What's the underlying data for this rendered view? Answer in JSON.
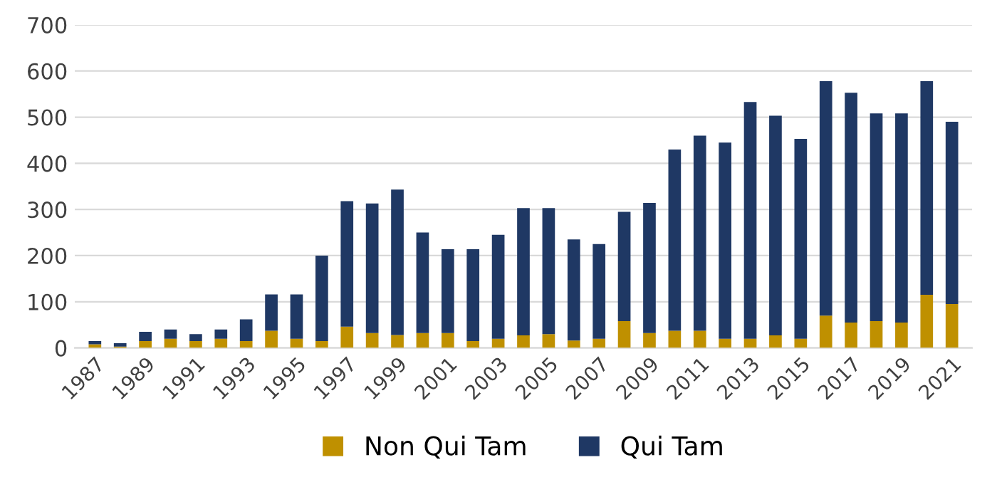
{
  "chart_data": {
    "type": "bar",
    "stacked": true,
    "categories": [
      "1987",
      null,
      "1989",
      null,
      "1991",
      null,
      "1993",
      null,
      "1995",
      null,
      "1997",
      null,
      "1999",
      null,
      "2001",
      null,
      "2003",
      null,
      "2005",
      null,
      "2007",
      null,
      "2009",
      null,
      "2011",
      null,
      "2013",
      null,
      "2015",
      null,
      "2017",
      null,
      "2019",
      null,
      "2021"
    ],
    "series": [
      {
        "name": "Non Qui Tam",
        "color": "#bf9000",
        "values": [
          8,
          3,
          15,
          20,
          15,
          20,
          15,
          37,
          20,
          15,
          46,
          32,
          28,
          32,
          32,
          15,
          20,
          27,
          30,
          16,
          20,
          58,
          32,
          37,
          37,
          20,
          20,
          27,
          20,
          70,
          55,
          58,
          55,
          115,
          95
        ]
      },
      {
        "name": "Qui Tam",
        "color": "#1f3864",
        "values": [
          7,
          7,
          20,
          20,
          15,
          20,
          47,
          79,
          96,
          185,
          272,
          281,
          315,
          218,
          182,
          199,
          225,
          276,
          273,
          219,
          205,
          237,
          282,
          393,
          423,
          425,
          513,
          476,
          433,
          508,
          498,
          450,
          453,
          463,
          395
        ]
      }
    ],
    "ylim": [
      0,
      700
    ],
    "yticks": [
      0,
      100,
      200,
      300,
      400,
      500,
      600,
      700
    ],
    "grid": "y",
    "legend": "bottom"
  }
}
